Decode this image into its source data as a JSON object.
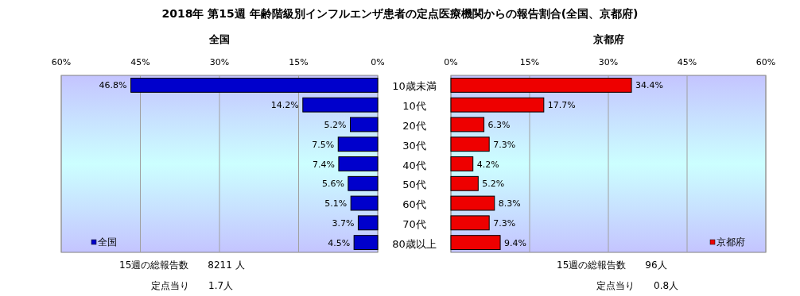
{
  "chart_data": [
    {
      "type": "bar",
      "orientation": "horizontal",
      "title": "2018年 第15週 年齢階級別インフルエンザ患者の定点医療機関からの報告割合(全国、京都府)",
      "subtitle": "全国",
      "categories": [
        "10歳未満",
        "10代",
        "20代",
        "30代",
        "40代",
        "50代",
        "60代",
        "70代",
        "80歳以上"
      ],
      "series": [
        {
          "name": "全国",
          "color": "#0000cc",
          "values": [
            46.8,
            14.2,
            5.2,
            7.5,
            7.4,
            5.6,
            5.1,
            3.7,
            4.5
          ],
          "value_labels": [
            "46.8%",
            "14.2%",
            "5.2%",
            "7.5%",
            "7.4%",
            "5.6%",
            "5.1%",
            "3.7%",
            "4.5%"
          ]
        }
      ],
      "xlim": [
        60,
        0
      ],
      "xticks": [
        {
          "value": 60,
          "label": "60%"
        },
        {
          "value": 45,
          "label": "45%"
        },
        {
          "value": 30,
          "label": "30%"
        },
        {
          "value": 15,
          "label": "15%"
        },
        {
          "value": 0,
          "label": "0%"
        }
      ],
      "grid": "x",
      "legend": "bottom left",
      "annotations": [
        "15週の総報告数　　8211 人",
        "定点当り　　1.7人"
      ]
    },
    {
      "type": "bar",
      "orientation": "horizontal",
      "subtitle": "京都府",
      "categories": [
        "10歳未満",
        "10代",
        "20代",
        "30代",
        "40代",
        "50代",
        "60代",
        "70代",
        "80歳以上"
      ],
      "series": [
        {
          "name": "京都府",
          "color": "#ee0000",
          "values": [
            34.4,
            17.7,
            6.3,
            7.3,
            4.2,
            5.2,
            8.3,
            7.3,
            9.4
          ],
          "value_labels": [
            "34.4%",
            "17.7%",
            "6.3%",
            "7.3%",
            "4.2%",
            "5.2%",
            "8.3%",
            "7.3%",
            "9.4%"
          ]
        }
      ],
      "xlim": [
        0,
        60
      ],
      "xticks": [
        {
          "value": 0,
          "label": "0%"
        },
        {
          "value": 15,
          "label": "15%"
        },
        {
          "value": 30,
          "label": "30%"
        },
        {
          "value": 45,
          "label": "45%"
        },
        {
          "value": 60,
          "label": "60%"
        }
      ],
      "grid": "x",
      "legend": "bottom right",
      "tick_labels": "x",
      "annotations": [
        "15週の総報告数　　96人",
        "定点当り　　0.8人"
      ]
    }
  ]
}
